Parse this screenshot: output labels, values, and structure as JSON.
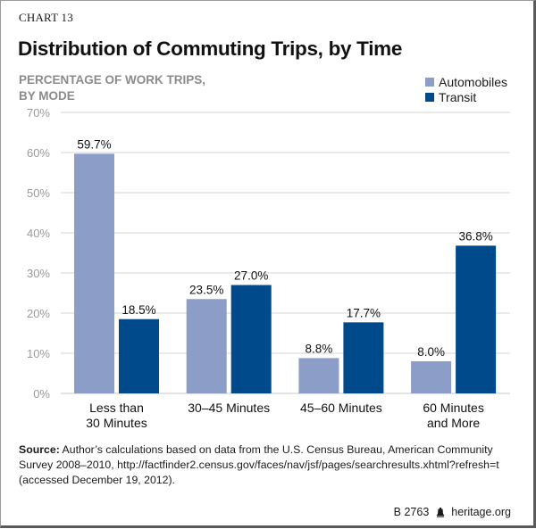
{
  "header": {
    "chart_label": "CHART 13",
    "title": "Distribution of Commuting Trips, by Time",
    "ylabel": "PERCENTAGE OF WORK TRIPS,\nBY MODE"
  },
  "legend": [
    {
      "name": "Automobiles",
      "color": "#8c9dc7"
    },
    {
      "name": "Transit",
      "color": "#004a8c"
    }
  ],
  "chart_data": {
    "type": "bar",
    "title": "Distribution of Commuting Trips, by Time",
    "xlabel": "",
    "ylabel": "PERCENTAGE OF WORK TRIPS, BY MODE",
    "categories": [
      "Less than\n30 Minutes",
      "30–45 Minutes",
      "45–60 Minutes",
      "60 Minutes\nand More"
    ],
    "series": [
      {
        "name": "Automobiles",
        "values": [
          59.7,
          23.5,
          8.8,
          8.0
        ],
        "labels": [
          "59.7%",
          "23.5%",
          "8.8%",
          "8.0%"
        ],
        "color": "#8c9dc7"
      },
      {
        "name": "Transit",
        "values": [
          18.5,
          27.0,
          17.7,
          36.8
        ],
        "labels": [
          "18.5%",
          "27.0%",
          "17.7%",
          "36.8%"
        ],
        "color": "#004a8c"
      }
    ],
    "ylim": [
      0,
      70
    ],
    "yticks": [
      0,
      10,
      20,
      30,
      40,
      50,
      60,
      70
    ],
    "ytick_labels": [
      "0%",
      "10%",
      "20%",
      "30%",
      "40%",
      "50%",
      "60%",
      "70%"
    ],
    "grid": true,
    "legend_position": "top-right"
  },
  "source": {
    "label": "Source:",
    "text": " Author’s calculations based on data from the U.S. Census Bureau, American Community Survey 2008–2010, http://factfinder2.census.gov/faces/nav/jsf/pages/searchresults.xhtml?refresh=t (accessed December 19, 2012)."
  },
  "footer": {
    "code": "B 2763",
    "icon": "liberty-bell-icon",
    "site": "heritage.org"
  }
}
